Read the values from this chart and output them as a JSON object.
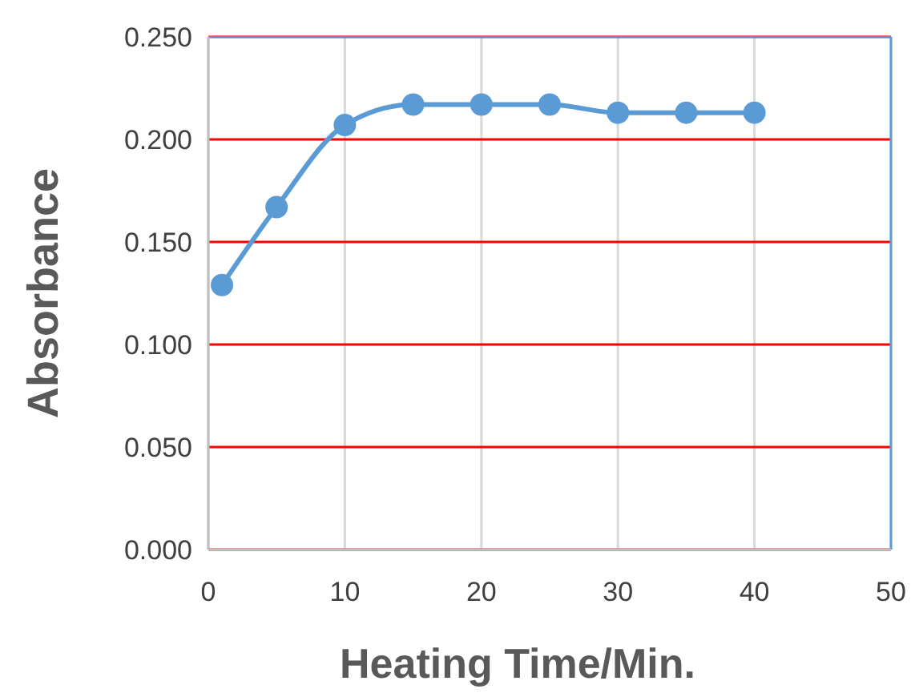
{
  "chart_data": {
    "type": "line",
    "xlabel": "Heating Time/Min.",
    "ylabel": "Absorbance",
    "x": [
      1,
      5,
      10,
      15,
      20,
      25,
      30,
      35,
      40
    ],
    "series": [
      {
        "color": "#5b9bd5",
        "values": [
          0.129,
          0.167,
          0.207,
          0.217,
          0.217,
          0.217,
          0.213,
          0.213,
          0.213
        ]
      }
    ],
    "xlim": [
      0,
      50
    ],
    "xticks": [
      0,
      10,
      20,
      30,
      40,
      50
    ],
    "ylim": [
      0,
      0.25
    ],
    "yticks": [
      {
        "value": 0,
        "label": "0.000"
      },
      {
        "value": 0.05,
        "label": "0.050"
      },
      {
        "value": 0.1,
        "label": "0.100"
      },
      {
        "value": 0.15,
        "label": "0.150"
      },
      {
        "value": 0.2,
        "label": "0.200"
      },
      {
        "value": 0.25,
        "label": "0.250"
      }
    ],
    "grid": true,
    "marker": "circle",
    "line_style": "solid"
  }
}
